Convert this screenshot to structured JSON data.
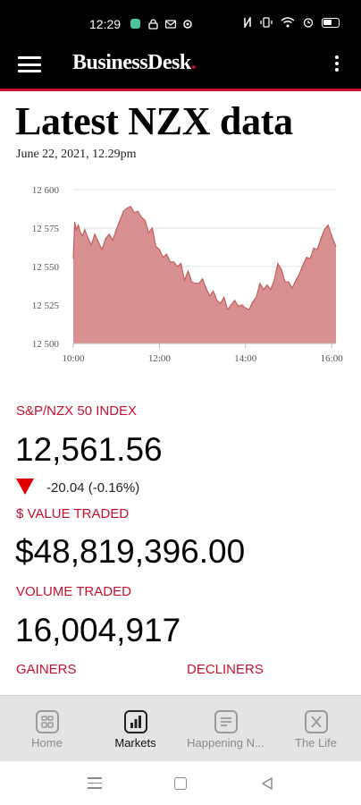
{
  "status_bar": {
    "time": "12:29",
    "icons": [
      "app-badge-icon",
      "lock-icon",
      "mail-icon",
      "settings-icon",
      "nfc-icon",
      "vibrate-icon",
      "wifi-icon",
      "alarm-icon",
      "battery-icon"
    ]
  },
  "app_bar": {
    "logo_text": "BusinessDesk",
    "logo_dot": ".",
    "menu_icon": "hamburger-icon",
    "more_icon": "more-vertical-icon"
  },
  "page": {
    "title": "Latest NZX data",
    "date": "June 22, 2021, 12.29pm"
  },
  "chart_data": {
    "type": "area",
    "color": "#d17c7c",
    "line_color": "#c65c5c",
    "ylim": [
      12500,
      12600
    ],
    "yticks": [
      "12 600",
      "12 575",
      "12 550",
      "12 525",
      "12 500"
    ],
    "ytick_values": [
      12600,
      12575,
      12550,
      12525,
      12500
    ],
    "xticks": [
      "10:00",
      "12:00",
      "14:00",
      "16:00"
    ],
    "xtick_values": [
      600,
      720,
      840,
      960
    ],
    "xlim": [
      600,
      966
    ],
    "x": [
      600,
      602,
      604,
      607,
      610,
      613,
      616,
      620,
      625,
      630,
      635,
      640,
      645,
      650,
      655,
      660,
      665,
      670,
      675,
      680,
      685,
      690,
      695,
      700,
      705,
      710,
      715,
      720,
      725,
      730,
      735,
      740,
      745,
      750,
      755,
      760,
      765,
      770,
      775,
      780,
      785,
      790,
      795,
      800,
      805,
      810,
      815,
      820,
      825,
      830,
      835,
      840,
      845,
      850,
      855,
      860,
      865,
      870,
      875,
      880,
      885,
      890,
      895,
      900,
      905,
      910,
      915,
      920,
      925,
      930,
      935,
      940,
      945,
      950,
      955,
      960,
      966
    ],
    "y": [
      12555,
      12579,
      12574,
      12577,
      12572,
      12570,
      12574,
      12569,
      12564,
      12571,
      12566,
      12561,
      12568,
      12571,
      12567,
      12574,
      12580,
      12586,
      12588,
      12589,
      12585,
      12586,
      12582,
      12580,
      12572,
      12575,
      12563,
      12561,
      12556,
      12558,
      12553,
      12553,
      12550,
      12552,
      12541,
      12547,
      12540,
      12539,
      12539,
      12542,
      12536,
      12531,
      12534,
      12528,
      12526,
      12530,
      12522,
      12525,
      12528,
      12524,
      12525,
      12523,
      12522,
      12527,
      12530,
      12539,
      12535,
      12538,
      12535,
      12541,
      12552,
      12548,
      12540,
      12540,
      12536,
      12541,
      12545,
      12551,
      12556,
      12555,
      12562,
      12561,
      12568,
      12574,
      12577,
      12570,
      12563
    ]
  },
  "stats": {
    "index_label": "S&P/NZX 50 INDEX",
    "index_value": "12,561.56",
    "change": "-20.04 (-0.16%)",
    "value_label": "$ VALUE TRADED",
    "value_traded": "$48,819,396.00",
    "volume_label": "VOLUME TRADED",
    "volume_traded": "16,004,917",
    "gainers_label": "GAINERS",
    "decliners_label": "DECLINERS"
  },
  "bottom_nav": {
    "items": [
      {
        "label": "Home",
        "icon": "home-icon",
        "active": false
      },
      {
        "label": "Markets",
        "icon": "bar-chart-icon",
        "active": true
      },
      {
        "label": "Happening N...",
        "icon": "article-icon",
        "active": false
      },
      {
        "label": "The Life",
        "icon": "dining-icon",
        "active": false
      }
    ]
  },
  "colors": {
    "accent": "#c8102e",
    "chart_fill": "#d17c7c",
    "down_arrow": "#e00000"
  }
}
